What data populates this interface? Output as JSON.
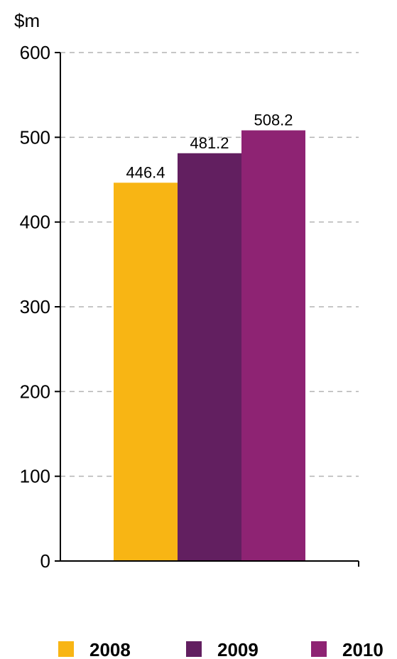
{
  "chart_data": {
    "type": "bar",
    "ylabel": "$m",
    "ylim": [
      0,
      600
    ],
    "yticks": [
      0,
      100,
      200,
      300,
      400,
      500,
      600
    ],
    "grid": true,
    "legend": "bottom",
    "series": [
      {
        "name": "2008",
        "value": 446.4,
        "label": "446.4",
        "color": "#F8B514"
      },
      {
        "name": "2009",
        "value": 481.2,
        "label": "481.2",
        "color": "#621F60"
      },
      {
        "name": "2010",
        "value": 508.2,
        "label": "508.2",
        "color": "#8E2373"
      }
    ]
  }
}
